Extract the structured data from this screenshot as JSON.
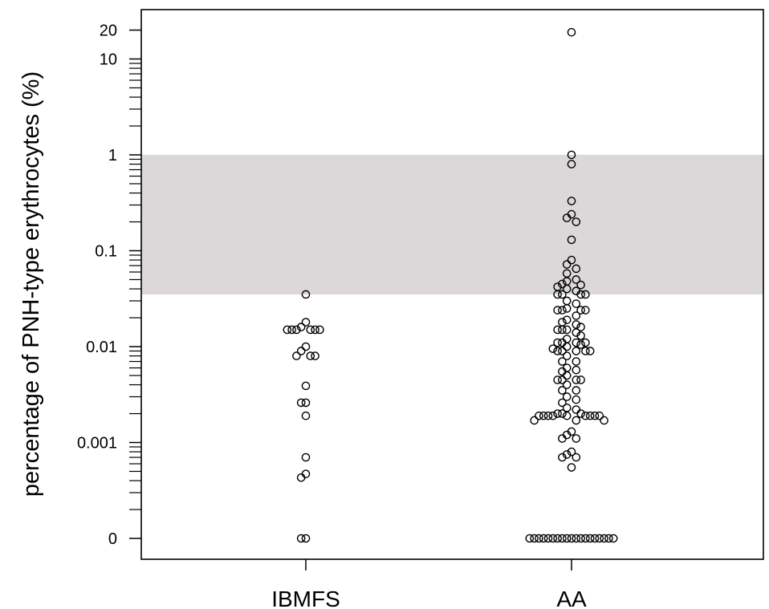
{
  "chart_data": {
    "type": "scatter",
    "ylabel": "percentage of PNH-type erythrocytes (%)",
    "y_scale": "log (with separate zero level)",
    "y_tick_labels": [
      "20",
      "10",
      "1",
      "0.1",
      "0.01",
      "0.001",
      "0"
    ],
    "y_tick_values": [
      20,
      10,
      1,
      0.1,
      0.01,
      0.001,
      0
    ],
    "categories": [
      "IBMFS",
      "AA"
    ],
    "shaded_band": [
      0.035,
      1.0
    ],
    "grid": false,
    "colors": {
      "band": "#dcd8d9",
      "points": "#000000"
    },
    "series": [
      {
        "category": "IBMFS",
        "values": [
          0.035,
          0.018,
          0.016,
          0.015,
          0.015,
          0.015,
          0.015,
          0.015,
          0.015,
          0.01,
          0.009,
          0.008,
          0.008,
          0.008,
          0.0039,
          0.0026,
          0.0026,
          0.0019,
          0.0007,
          0.00047,
          0.00043,
          0,
          0
        ]
      },
      {
        "category": "AA",
        "values": [
          19,
          1.0,
          0.8,
          0.33,
          0.24,
          0.22,
          0.2,
          0.13,
          0.08,
          0.072,
          0.065,
          0.058,
          0.05,
          0.048,
          0.045,
          0.044,
          0.042,
          0.04,
          0.038,
          0.035,
          0.035,
          0.035,
          0.035,
          0.03,
          0.028,
          0.025,
          0.024,
          0.024,
          0.024,
          0.024,
          0.021,
          0.019,
          0.018,
          0.017,
          0.016,
          0.015,
          0.015,
          0.015,
          0.014,
          0.013,
          0.012,
          0.011,
          0.011,
          0.011,
          0.011,
          0.0105,
          0.01,
          0.0095,
          0.009,
          0.009,
          0.009,
          0.009,
          0.009,
          0.008,
          0.007,
          0.007,
          0.006,
          0.0057,
          0.0055,
          0.005,
          0.0045,
          0.0045,
          0.0045,
          0.0045,
          0.004,
          0.0035,
          0.0035,
          0.003,
          0.0028,
          0.0026,
          0.0023,
          0.0022,
          0.002,
          0.002,
          0.002,
          0.0019,
          0.0019,
          0.0019,
          0.0019,
          0.0019,
          0.0019,
          0.0019,
          0.0019,
          0.0019,
          0.0017,
          0.0017,
          0.0017,
          0.0013,
          0.0012,
          0.0011,
          0.0011,
          0.0008,
          0.00075,
          0.0007,
          0.0007,
          0.00055,
          0,
          0,
          0,
          0,
          0,
          0,
          0,
          0,
          0,
          0,
          0,
          0,
          0,
          0,
          0,
          0,
          0,
          0,
          0
        ]
      }
    ]
  }
}
